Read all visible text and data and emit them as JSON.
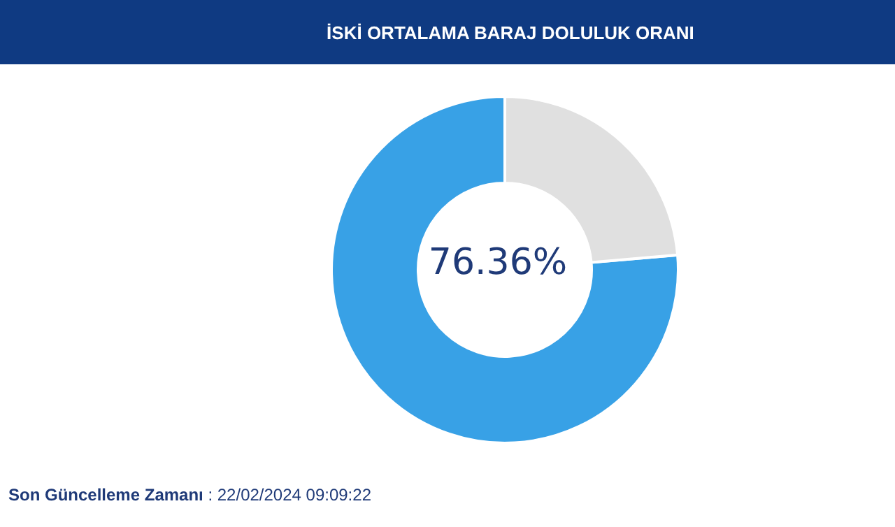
{
  "chart_data": {
    "type": "donut",
    "title": "İSKİ ORTALAMA BARAJ DOLULUK ORANI",
    "categories": [
      null,
      null
    ],
    "values": [
      76.36,
      23.64
    ],
    "colors": [
      "#38a1e6",
      "#e0e0e0"
    ],
    "value_labels": [
      "76.36%",
      null
    ],
    "annotations": [
      "Son Güncelleme Zamanı : 22/02/2024 09:09:22"
    ]
  }
}
